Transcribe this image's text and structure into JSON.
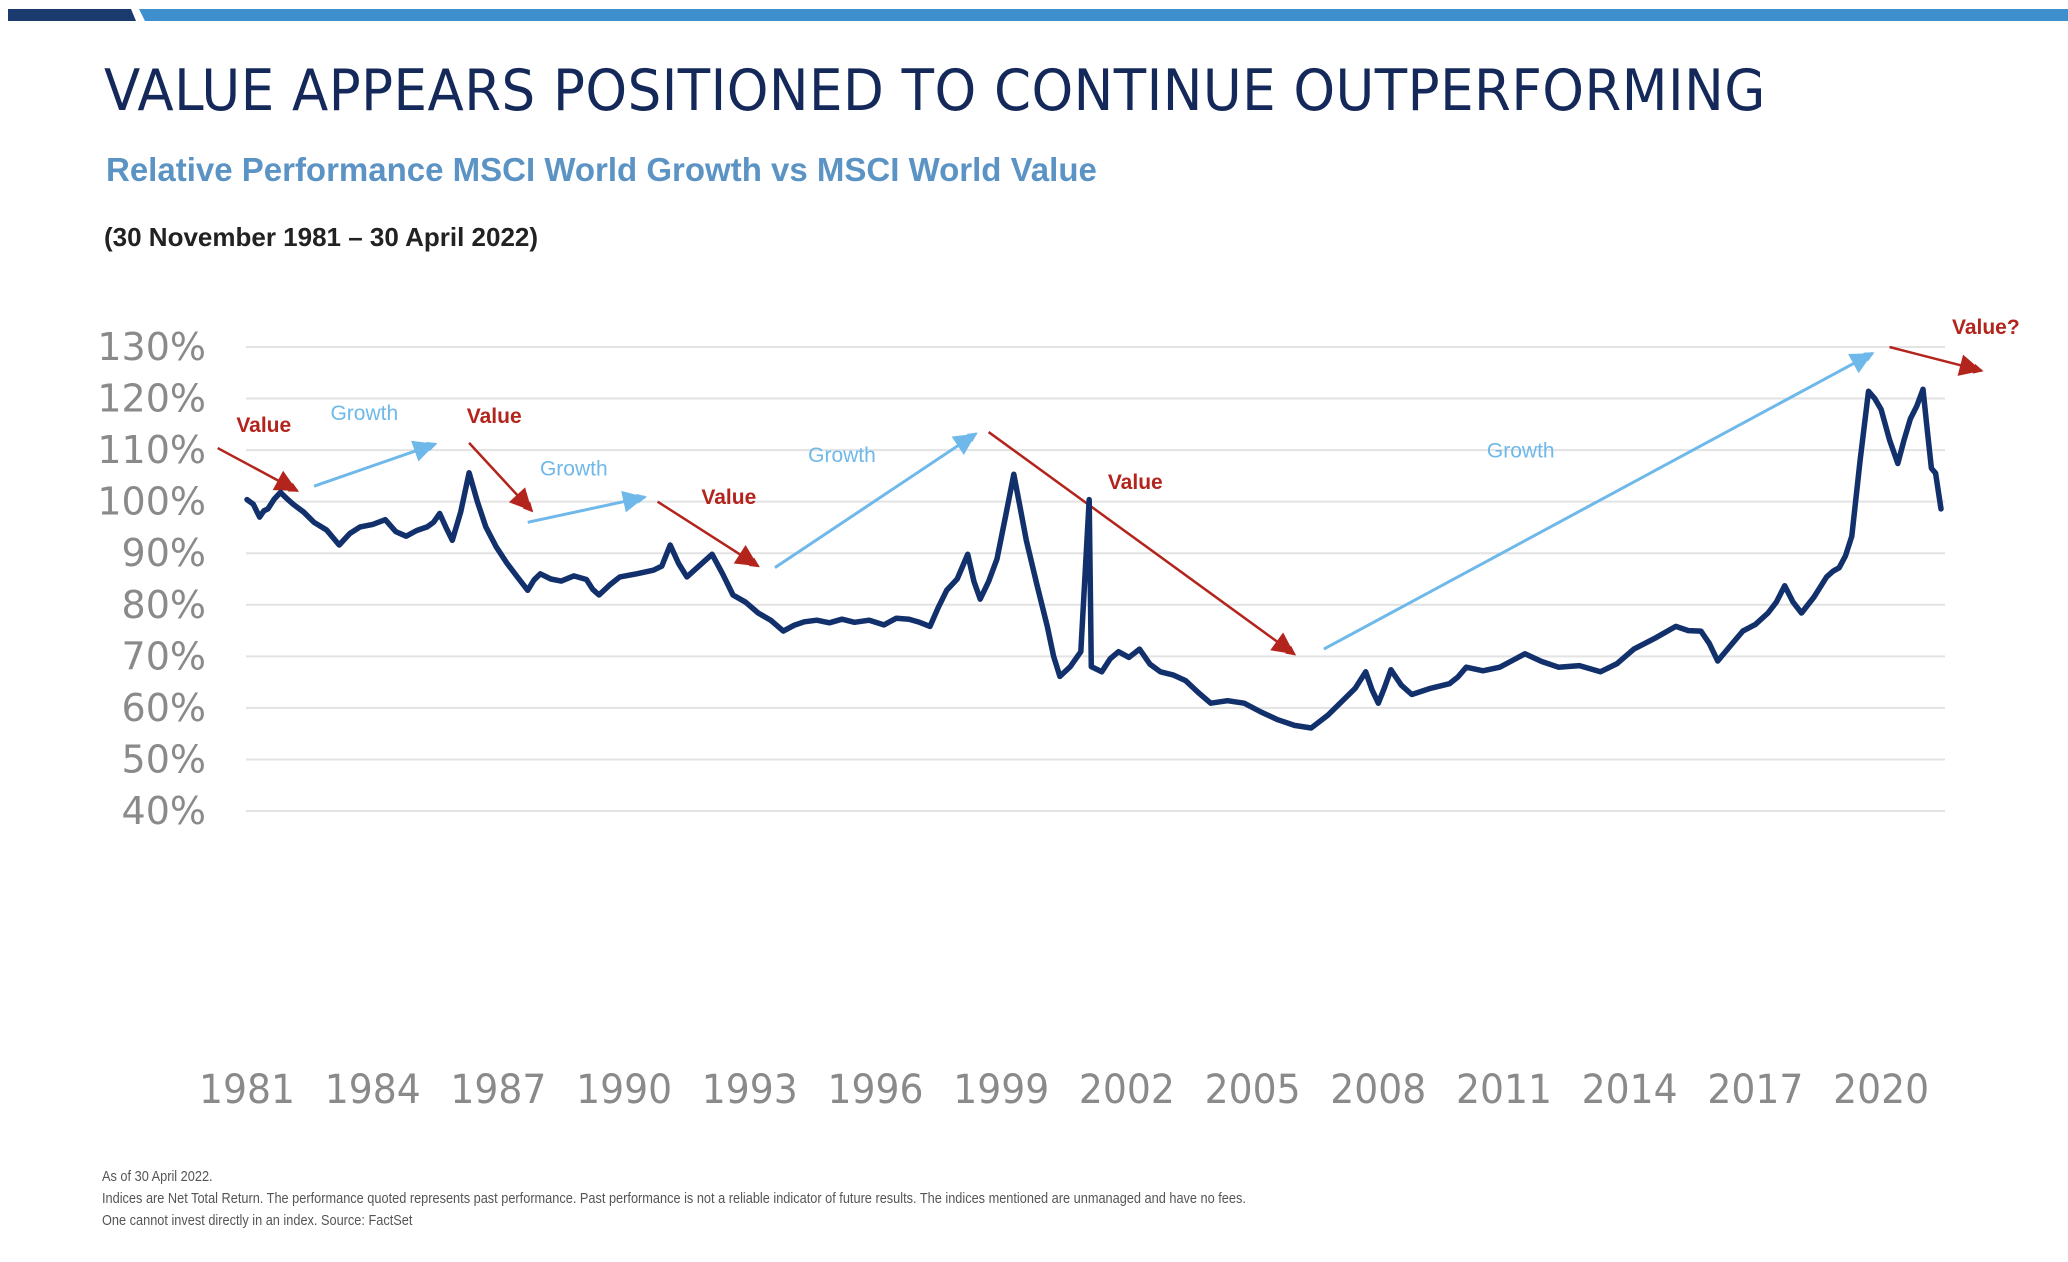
{
  "header": {
    "title": "VALUE APPEARS POSITIONED TO CONTINUE OUTPERFORMING",
    "subtitle": "Relative Performance MSCI World Growth vs MSCI World Value",
    "date_range": "(30 November 1981 – 30 April 2022)"
  },
  "colors": {
    "title": "#14295a",
    "subtitle": "#5b93c4",
    "line": "#12306b",
    "value_arrow": "#b3241c",
    "growth_arrow": "#6fb8ea",
    "grid": "#e3e3e3",
    "tick_label": "#8a8a8a",
    "accent_dark": "#1b3a6e",
    "accent_light": "#3e8fcd"
  },
  "footnotes": [
    "As of 30 April 2022.",
    "Indices are Net Total Return. The performance quoted represents past performance. Past performance is not a reliable indicator of future results. The indices mentioned are unmanaged and have no fees.",
    "One cannot invest directly in an index. Source: FactSet"
  ],
  "chart_data": {
    "type": "line",
    "title": "Relative Performance MSCI World Growth vs MSCI World Value",
    "xlabel": "",
    "ylabel": "",
    "ylim": [
      40,
      130
    ],
    "xlim": [
      1981.9,
      2022.33
    ],
    "grid": true,
    "legend": "none",
    "y_ticks": [
      130,
      120,
      110,
      100,
      90,
      80,
      70,
      60,
      50,
      40
    ],
    "y_tick_labels": [
      "130%",
      "120%",
      "110%",
      "100%",
      "90%",
      "80%",
      "70%",
      "60%",
      "50%",
      "40%"
    ],
    "x_ticks": [
      1981.9,
      1984.9,
      1987.9,
      1990.9,
      1993.9,
      1996.9,
      1999.9,
      2002.9,
      2005.9,
      2008.9,
      2011.9,
      2014.9,
      2017.9,
      2020.9
    ],
    "x_tick_labels": [
      "1981",
      "1984",
      "1987",
      "1990",
      "1993",
      "1996",
      "1999",
      "2002",
      "2005",
      "2008",
      "2011",
      "2014",
      "2017",
      "2020"
    ],
    "series": [
      {
        "name": "MSCI World Growth vs MSCI World Value (%)",
        "x": [
          1981.9,
          2002.0,
          1982.05,
          1982.2,
          1982.3,
          1982.4,
          1982.55,
          1982.7,
          1982.85,
          1983.0,
          1983.25,
          1983.5,
          1983.8,
          1984.1,
          1984.35,
          1984.6,
          1984.9,
          1985.2,
          1985.45,
          1985.7,
          1985.95,
          1986.2,
          1986.35,
          1986.5,
          1986.65,
          1986.8,
          1987.0,
          1987.2,
          1987.4,
          1987.6,
          1987.85,
          1988.1,
          1988.35,
          1988.6,
          1988.75,
          1988.9,
          1989.15,
          1989.4,
          1989.7,
          1990.0,
          1990.15,
          1990.3,
          1990.55,
          1990.8,
          1991.2,
          1991.6,
          1991.8,
          1992.0,
          1992.2,
          1992.4,
          1992.7,
          1993.0,
          1993.25,
          1993.5,
          1993.8,
          1994.1,
          1994.4,
          1994.7,
          1994.95,
          1995.2,
          1995.5,
          1995.8,
          1996.1,
          1996.4,
          1996.75,
          1997.1,
          1997.4,
          1997.7,
          1997.95,
          1998.2,
          1998.4,
          1998.6,
          1998.85,
          1999.1,
          1999.25,
          1999.4,
          1999.6,
          1999.8,
          2000.0,
          2000.2,
          2000.35,
          2000.5,
          2000.75,
          2001.0,
          2001.15,
          2001.3,
          2001.55,
          2001.8,
          2002.05,
          2002.3,
          2002.5,
          2002.7,
          2002.95,
          2003.2,
          2003.45,
          2003.7,
          2004.0,
          2004.3,
          2004.6,
          2004.9,
          2005.3,
          2005.7,
          2006.1,
          2006.5,
          2006.9,
          2007.3,
          2007.7,
          2008.1,
          2008.35,
          2008.6,
          2008.75,
          2008.9,
          2009.05,
          2009.2,
          2009.45,
          2009.7,
          2010.15,
          2010.6,
          2010.8,
          2011.0,
          2011.4,
          2011.8,
          2012.1,
          2012.4,
          2012.8,
          2013.2,
          2013.7,
          2014.2,
          2014.6,
          2015.0,
          2015.5,
          2016.0,
          2016.3,
          2016.6,
          2016.8,
          2017.0,
          2017.3,
          2017.6,
          2017.9,
          2018.2,
          2018.4,
          2018.6,
          2018.8,
          2019.0,
          2019.3,
          2019.6,
          2019.75,
          2019.9,
          2020.05,
          2020.2,
          2020.4,
          2020.6,
          2020.75,
          2020.9,
          2021.1,
          2021.3,
          2021.45,
          2021.6,
          2021.75,
          2021.9,
          2022.0,
          2022.1,
          2022.2,
          2022.33
        ],
        "y": [
          100.4,
          100.4,
          99.5,
          97.0,
          98.2,
          98.6,
          100.5,
          101.8,
          100.6,
          99.5,
          98.0,
          96.0,
          94.5,
          91.6,
          93.8,
          95.1,
          95.6,
          96.5,
          94.2,
          93.3,
          94.4,
          95.1,
          96.0,
          97.7,
          95.0,
          92.5,
          98.0,
          105.6,
          100.0,
          95.1,
          91.2,
          88.1,
          85.4,
          82.8,
          84.8,
          86.0,
          85.0,
          84.6,
          85.6,
          84.9,
          83.0,
          81.9,
          83.8,
          85.4,
          86.0,
          86.7,
          87.5,
          91.6,
          88.0,
          85.4,
          87.6,
          89.8,
          86.0,
          81.9,
          80.5,
          78.4,
          77.0,
          74.9,
          76.0,
          76.7,
          77.0,
          76.5,
          77.2,
          76.6,
          77.0,
          76.1,
          77.4,
          77.2,
          76.6,
          75.8,
          79.5,
          82.8,
          85.0,
          89.8,
          84.5,
          81.1,
          84.5,
          88.9,
          97.0,
          105.3,
          99.0,
          92.5,
          84.0,
          75.8,
          70.0,
          66.1,
          68.0,
          70.9,
          68.0,
          67.0,
          69.5,
          70.9,
          69.8,
          71.4,
          68.5,
          67.0,
          66.4,
          65.3,
          63.0,
          60.9,
          61.4,
          60.9,
          59.2,
          57.7,
          56.6,
          56.1,
          58.6,
          61.8,
          63.8,
          67.0,
          63.5,
          60.9,
          64.0,
          67.4,
          64.4,
          62.6,
          63.8,
          64.7,
          66.0,
          67.9,
          67.2,
          67.9,
          69.2,
          70.5,
          69.0,
          67.9,
          68.2,
          67.0,
          68.6,
          71.4,
          73.5,
          75.8,
          75.0,
          74.9,
          72.5,
          69.1,
          72.0,
          74.9,
          76.2,
          78.4,
          80.5,
          83.7,
          80.5,
          78.4,
          81.5,
          85.4,
          86.5,
          87.2,
          89.5,
          93.3,
          108.0,
          121.4,
          120.0,
          117.9,
          112.0,
          107.4,
          112.0,
          116.1,
          118.5,
          121.8,
          114.0,
          106.5,
          105.5,
          98.6
        ]
      }
    ],
    "annotations": [
      {
        "kind": "value",
        "label": "Value",
        "from": [
          1981.2,
          110.4
        ],
        "to": [
          1983.1,
          102.1
        ],
        "label_at": [
          1982.3,
          113.5
        ]
      },
      {
        "kind": "growth",
        "label": "Growth",
        "from": [
          1983.5,
          103.0
        ],
        "to": [
          1986.4,
          111.2
        ],
        "label_at": [
          1984.7,
          115.8
        ]
      },
      {
        "kind": "value",
        "label": "Value",
        "from": [
          1987.2,
          111.4
        ],
        "to": [
          1988.7,
          98.2
        ],
        "label_at": [
          1987.8,
          115.3
        ]
      },
      {
        "kind": "growth",
        "label": "Growth",
        "from": [
          1988.6,
          96.0
        ],
        "to": [
          1991.4,
          100.9
        ],
        "label_at": [
          1989.7,
          105.1
        ]
      },
      {
        "kind": "value",
        "label": "Value",
        "from": [
          1991.7,
          100.0
        ],
        "to": [
          1994.1,
          87.5
        ],
        "label_at": [
          1993.4,
          99.5
        ]
      },
      {
        "kind": "growth",
        "label": "Growth",
        "from": [
          1994.5,
          87.2
        ],
        "to": [
          1999.3,
          113.2
        ],
        "label_at": [
          1996.1,
          107.7
        ]
      },
      {
        "kind": "value",
        "label": "Value",
        "from": [
          1999.6,
          113.5
        ],
        "to": [
          2006.9,
          70.4
        ],
        "label_at": [
          2003.1,
          102.5
        ]
      },
      {
        "kind": "growth",
        "label": "Growth",
        "from": [
          2007.6,
          71.4
        ],
        "to": [
          2020.7,
          128.8
        ],
        "label_at": [
          2012.3,
          108.6
        ]
      },
      {
        "kind": "value",
        "label": "Value?",
        "from": [
          2021.1,
          130.0
        ],
        "to": [
          2023.3,
          125.4
        ],
        "label_at": [
          2023.4,
          132.5
        ]
      }
    ]
  }
}
